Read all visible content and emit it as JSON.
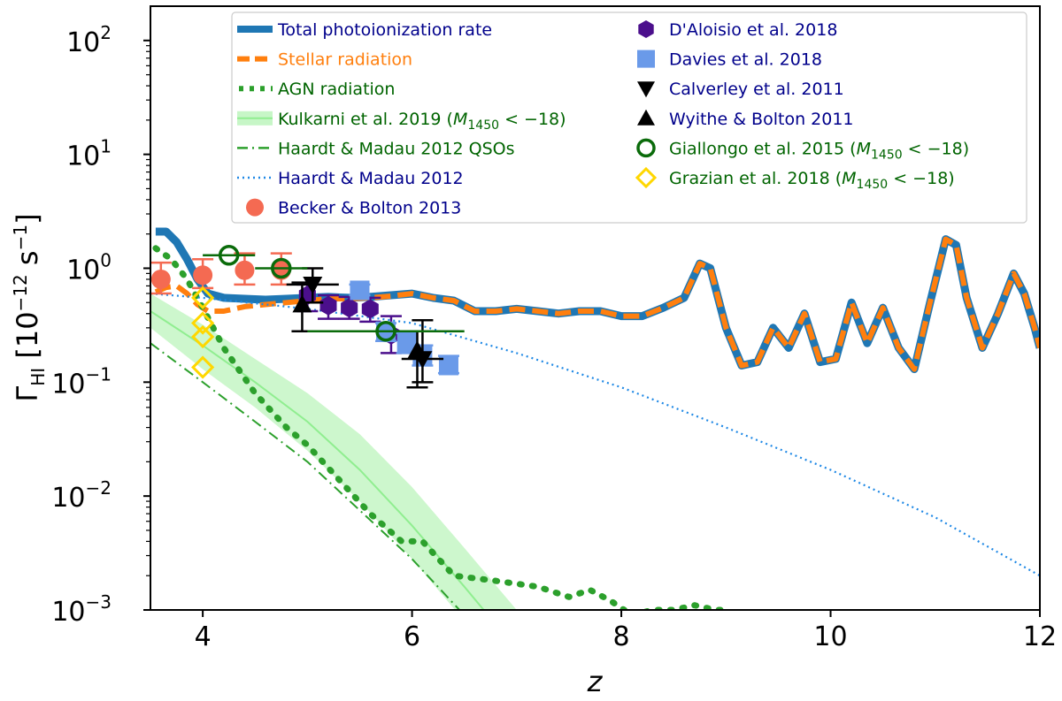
{
  "chart_data": {
    "type": "line",
    "title": "",
    "xlabel": "z",
    "ylabel": {
      "symbol": "Γ",
      "subscript": "HI",
      "units": "[10",
      "units_exp": "−12",
      "units_tail": " s",
      "units_tail_exp": "−1",
      "units_close": "]"
    },
    "xlim": [
      3.5,
      12
    ],
    "ylim": [
      0.001,
      200
    ],
    "yscale": "log",
    "grid": false,
    "legend_placement": "top-center",
    "x_ticks": [
      {
        "value": 4,
        "label": "4"
      },
      {
        "value": 6,
        "label": "6"
      },
      {
        "value": 8,
        "label": "8"
      },
      {
        "value": 10,
        "label": "10"
      },
      {
        "value": 12,
        "label": "12"
      }
    ],
    "y_ticks": [
      {
        "value": 100,
        "base": "10",
        "exp": "2"
      },
      {
        "value": 10,
        "base": "10",
        "exp": "1"
      },
      {
        "value": 1,
        "base": "10",
        "exp": "0"
      },
      {
        "value": 0.1,
        "base": "10",
        "exp": "−1"
      },
      {
        "value": 0.01,
        "base": "10",
        "exp": "−2"
      },
      {
        "value": 0.001,
        "base": "10",
        "exp": "−3"
      }
    ],
    "series": [
      {
        "name": "Total photoionization rate",
        "kind": "line",
        "color": "#1f77b4",
        "x": [
          3.55,
          3.65,
          3.75,
          3.85,
          3.95,
          4.05,
          4.2,
          4.4,
          4.6,
          4.8,
          5.0,
          5.2,
          5.4,
          5.6,
          5.8,
          6.0,
          6.2,
          6.4,
          6.6,
          6.8,
          7.0,
          7.2,
          7.4,
          7.6,
          7.8,
          8.0,
          8.2,
          8.4,
          8.6,
          8.75,
          8.85,
          9.0,
          9.15,
          9.3,
          9.45,
          9.6,
          9.75,
          9.9,
          10.05,
          10.2,
          10.35,
          10.5,
          10.65,
          10.8,
          10.95,
          11.1,
          11.2,
          11.3,
          11.45,
          11.6,
          11.75,
          11.85,
          11.95,
          12.0
        ],
        "y": [
          2.1,
          2.1,
          1.7,
          1.2,
          0.8,
          0.6,
          0.55,
          0.54,
          0.53,
          0.54,
          0.55,
          0.56,
          0.55,
          0.56,
          0.58,
          0.6,
          0.55,
          0.52,
          0.42,
          0.42,
          0.44,
          0.42,
          0.4,
          0.42,
          0.42,
          0.38,
          0.38,
          0.45,
          0.55,
          1.1,
          1.0,
          0.3,
          0.14,
          0.15,
          0.3,
          0.2,
          0.4,
          0.15,
          0.16,
          0.5,
          0.22,
          0.45,
          0.2,
          0.13,
          0.5,
          1.8,
          1.6,
          0.55,
          0.2,
          0.4,
          0.9,
          0.6,
          0.3,
          0.2
        ]
      },
      {
        "name": "Stellar radiation",
        "kind": "line",
        "color": "#ff7f0e",
        "x": [
          3.55,
          3.65,
          3.75,
          3.85,
          3.95,
          4.05,
          4.2,
          4.4,
          4.6,
          4.8,
          5.0,
          5.2,
          5.4,
          5.6,
          5.8,
          6.0,
          6.2,
          6.4,
          6.6,
          6.8,
          7.0,
          7.2,
          7.4,
          7.6,
          7.8,
          8.0,
          8.2,
          8.4,
          8.6,
          8.75,
          8.85,
          9.0,
          9.15,
          9.3,
          9.45,
          9.6,
          9.75,
          9.9,
          10.05,
          10.2,
          10.35,
          10.5,
          10.65,
          10.8,
          10.95,
          11.1,
          11.2,
          11.3,
          11.45,
          11.6,
          11.75,
          11.85,
          11.95,
          12.0
        ],
        "y": [
          0.62,
          0.68,
          0.7,
          0.6,
          0.48,
          0.42,
          0.42,
          0.46,
          0.48,
          0.5,
          0.52,
          0.54,
          0.54,
          0.55,
          0.57,
          0.6,
          0.55,
          0.52,
          0.42,
          0.42,
          0.44,
          0.42,
          0.4,
          0.42,
          0.42,
          0.38,
          0.38,
          0.45,
          0.55,
          1.1,
          1.0,
          0.3,
          0.14,
          0.15,
          0.3,
          0.2,
          0.4,
          0.15,
          0.16,
          0.5,
          0.22,
          0.45,
          0.2,
          0.13,
          0.5,
          1.8,
          1.6,
          0.55,
          0.2,
          0.4,
          0.9,
          0.6,
          0.3,
          0.2
        ]
      },
      {
        "name": "AGN radiation",
        "kind": "line",
        "color": "#2ca02c",
        "x": [
          3.55,
          3.7,
          3.85,
          4.0,
          4.2,
          4.5,
          4.8,
          5.0,
          5.3,
          5.6,
          5.9,
          6.1,
          6.4,
          6.8,
          7.2,
          7.5,
          7.7,
          7.9,
          8.1,
          8.3,
          8.5,
          8.7,
          8.9,
          9.0
        ],
        "y": [
          1.5,
          1.2,
          0.8,
          0.45,
          0.2,
          0.08,
          0.04,
          0.028,
          0.014,
          0.007,
          0.004,
          0.004,
          0.002,
          0.0018,
          0.0016,
          0.0013,
          0.0015,
          0.0012,
          0.0009,
          0.001,
          0.001,
          0.0011,
          0.001,
          0.001
        ]
      },
      {
        "name": "Kulkarni et al. 2019 ($M_{1450}<-18$)",
        "kind": "band",
        "color": "#90ee90",
        "x": [
          3.5,
          4.0,
          4.5,
          5.0,
          5.5,
          6.0,
          6.5,
          7.0
        ],
        "y": [
          0.42,
          0.21,
          0.1,
          0.045,
          0.017,
          0.0055,
          0.0016,
          0.00045
        ],
        "y_low": [
          0.3,
          0.13,
          0.06,
          0.025,
          0.009,
          0.0028,
          0.0008,
          0.00022
        ],
        "y_high": [
          0.6,
          0.32,
          0.16,
          0.08,
          0.035,
          0.012,
          0.0035,
          0.001
        ]
      },
      {
        "name": "Haardt & Madau 2012 QSOs",
        "kind": "line",
        "color": "#2ca02c",
        "x": [
          3.5,
          4.0,
          4.5,
          5.0,
          5.5,
          6.0,
          6.5
        ],
        "y": [
          0.22,
          0.1,
          0.045,
          0.02,
          0.0075,
          0.0028,
          0.0009
        ]
      },
      {
        "name": "Haardt & Madau 2012",
        "kind": "line",
        "color": "#1e88e5",
        "x": [
          3.5,
          4.0,
          5.0,
          6.0,
          7.0,
          8.0,
          9.0,
          10.0,
          11.0,
          12.0
        ],
        "y": [
          0.6,
          0.55,
          0.44,
          0.33,
          0.18,
          0.09,
          0.04,
          0.017,
          0.0065,
          0.002
        ]
      },
      {
        "name": "Becker & Bolton 2013",
        "kind": "points",
        "color": "#f46a52",
        "marker": "circle",
        "x": [
          3.6,
          4.0,
          4.4,
          4.75
        ],
        "y": [
          0.8,
          0.87,
          0.96,
          0.96
        ],
        "y_low": [
          0.6,
          0.67,
          0.72,
          0.72
        ],
        "y_high": [
          1.12,
          1.2,
          1.35,
          1.35
        ]
      },
      {
        "name": "D'Aloisio et al. 2018",
        "kind": "points",
        "color": "#4b0f8c",
        "marker": "hexagon",
        "x": [
          5.0,
          5.2,
          5.4,
          5.6,
          5.8
        ],
        "y": [
          0.58,
          0.47,
          0.45,
          0.44,
          0.26
        ],
        "y_low": [
          0.42,
          0.36,
          0.36,
          0.34,
          0.18
        ],
        "y_high": [
          0.72,
          0.58,
          0.56,
          0.55,
          0.38
        ]
      },
      {
        "name": "Davies et al. 2018",
        "kind": "points",
        "color": "#6a9ae9",
        "marker": "square",
        "x": [
          5.5,
          5.75,
          5.95,
          6.1,
          6.35
        ],
        "y": [
          0.64,
          0.28,
          0.22,
          0.17,
          0.14
        ],
        "y_low": [
          0.58,
          0.23,
          0.18,
          0.14,
          0.12
        ],
        "y_high": [
          0.72,
          0.33,
          0.27,
          0.21,
          0.17
        ]
      },
      {
        "name": "Calverley et al. 2011",
        "kind": "points",
        "color": "#000000",
        "marker": "triangle-down",
        "x": [
          5.05,
          6.1
        ],
        "y": [
          0.72,
          0.16
        ],
        "y_low": [
          0.5,
          0.1
        ],
        "y_high": [
          1.0,
          0.35
        ],
        "x_low": [
          4.8,
          5.9
        ],
        "x_high": [
          5.3,
          6.3
        ]
      },
      {
        "name": "Wyithe & Bolton 2011",
        "kind": "points",
        "color": "#000000",
        "marker": "triangle-up",
        "x": [
          4.95,
          6.05
        ],
        "y": [
          0.48,
          0.19
        ],
        "y_low": [
          0.28,
          0.09
        ],
        "y_high": [
          0.75,
          0.28
        ]
      },
      {
        "name": "Giallongo et al. 2015 ($M_{1450}<-18$)",
        "kind": "points",
        "color": "#0a6b0a",
        "marker": "open-circle",
        "x": [
          4.25,
          4.75,
          5.75
        ],
        "y": [
          1.3,
          1.0,
          0.28
        ],
        "x_low": [
          4.0,
          4.5,
          5.0
        ],
        "x_high": [
          4.5,
          5.0,
          6.5
        ]
      },
      {
        "name": "Grazian et al. 2018 ($M_{1450}<-18$)",
        "kind": "points",
        "color": "#ffd700",
        "marker": "open-diamond",
        "x": [
          4.0,
          4.0,
          4.0,
          4.0
        ],
        "y": [
          0.55,
          0.33,
          0.25,
          0.135
        ]
      }
    ],
    "legend": {
      "left": [
        {
          "text": "Total photoionization rate",
          "color": "#00008b",
          "handle": "thick-line",
          "handle_color": "#1f77b4"
        },
        {
          "text": "Stellar radiation",
          "color": "#ff7f0e",
          "handle": "dashed-line",
          "handle_color": "#ff7f0e"
        },
        {
          "text": "AGN radiation",
          "color": "#006400",
          "handle": "dotted-green",
          "handle_color": "#2ca02c"
        },
        {
          "text": "Kulkarni et al. 2019 (",
          "math": "M",
          "sub": "1450",
          "tail": " < −18)",
          "color": "#006400",
          "handle": "band",
          "handle_color": "#90ee90"
        },
        {
          "text": "Haardt & Madau 2012 QSOs",
          "color": "#006400",
          "handle": "dashdot",
          "handle_color": "#2ca02c"
        },
        {
          "text": "Haardt & Madau 2012",
          "color": "#00008b",
          "handle": "dotted-blue",
          "handle_color": "#1e88e5"
        },
        {
          "text": "Becker & Bolton 2013",
          "color": "#00008b",
          "handle": "circle",
          "handle_color": "#f46a52"
        }
      ],
      "right": [
        {
          "text": "D'Aloisio et al. 2018",
          "color": "#00008b",
          "handle": "hexagon",
          "handle_color": "#4b0f8c"
        },
        {
          "text": "Davies et al. 2018",
          "color": "#00008b",
          "handle": "square",
          "handle_color": "#6a9ae9"
        },
        {
          "text": "Calverley et al. 2011",
          "color": "#00008b",
          "handle": "triangle-down",
          "handle_color": "#000000"
        },
        {
          "text": "Wyithe & Bolton 2011",
          "color": "#00008b",
          "handle": "triangle-up",
          "handle_color": "#000000"
        },
        {
          "text": "Giallongo et al. 2015 (",
          "math": "M",
          "sub": "1450",
          "tail": " < −18)",
          "color": "#006400",
          "handle": "open-circle",
          "handle_color": "#0a6b0a"
        },
        {
          "text": "Grazian et al. 2018 (",
          "math": "M",
          "sub": "1450",
          "tail": " < −18)",
          "color": "#006400",
          "handle": "open-diamond",
          "handle_color": "#ffd700"
        }
      ]
    }
  }
}
